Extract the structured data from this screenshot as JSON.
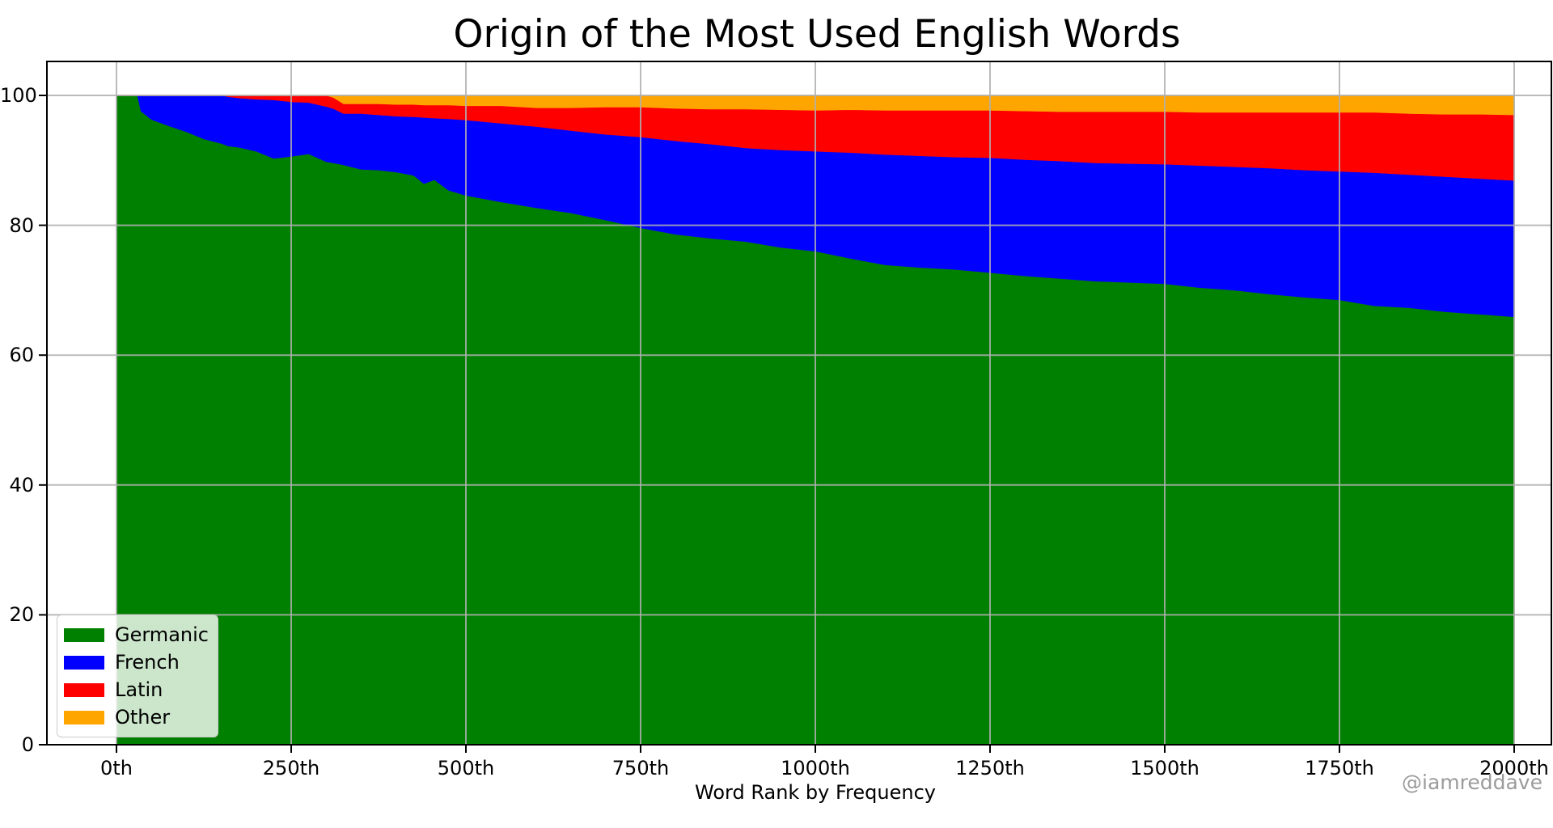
{
  "watermark": "@iamreddave",
  "background_color": "#ffffff",
  "frame_color": "#000000",
  "grid_color": "#b0b0b0",
  "chart_data": {
    "type": "area",
    "stacked": true,
    "title": "Origin of the Most Used English Words",
    "xlabel": "Word Rank by Frequency",
    "ylabel": "",
    "grid": true,
    "xlim": [
      -100,
      2052
    ],
    "ylim": [
      0,
      105
    ],
    "x_tick_values": [
      0,
      250,
      500,
      750,
      1000,
      1250,
      1500,
      1750,
      2000
    ],
    "x_tick_labels": [
      "0th",
      "250th",
      "500th",
      "750th",
      "1000th",
      "1250th",
      "1500th",
      "1750th",
      "2000th"
    ],
    "y_tick_values": [
      0,
      20,
      40,
      60,
      80,
      100
    ],
    "y_tick_labels": [
      "0",
      "20",
      "40",
      "60",
      "80",
      "100"
    ],
    "legend": {
      "position": "lower left",
      "entries": [
        "Germanic",
        "French",
        "Latin",
        "Other"
      ]
    },
    "x": [
      0,
      30,
      35,
      50,
      75,
      100,
      125,
      150,
      160,
      175,
      200,
      225,
      250,
      275,
      300,
      310,
      325,
      350,
      375,
      400,
      425,
      440,
      455,
      475,
      500,
      550,
      600,
      650,
      700,
      750,
      800,
      850,
      900,
      950,
      1000,
      1050,
      1100,
      1150,
      1200,
      1250,
      1300,
      1350,
      1400,
      1450,
      1500,
      1550,
      1600,
      1650,
      1700,
      1750,
      1800,
      1850,
      1900,
      1950,
      2000
    ],
    "series": [
      {
        "name": "Germanic",
        "color": "#008000",
        "values": [
          100,
          100,
          97.6,
          96.3,
          95.3,
          94.4,
          93.3,
          92.6,
          92.2,
          92.0,
          91.4,
          90.3,
          90.6,
          91.0,
          89.8,
          89.6,
          89.3,
          88.6,
          88.5,
          88.2,
          87.7,
          86.4,
          87.0,
          85.4,
          84.6,
          83.6,
          82.7,
          81.9,
          80.8,
          79.6,
          78.6,
          78.0,
          77.5,
          76.6,
          76.0,
          74.9,
          73.9,
          73.5,
          73.2,
          72.7,
          72.2,
          71.8,
          71.4,
          71.2,
          71.0,
          70.4,
          70.0,
          69.4,
          68.9,
          68.5,
          67.6,
          67.3,
          66.7,
          66.3,
          65.9
        ]
      },
      {
        "name": "French",
        "color": "#0000ff",
        "values": [
          0,
          0,
          2.4,
          3.7,
          4.7,
          5.6,
          6.7,
          7.4,
          7.6,
          7.6,
          8.0,
          9.0,
          8.4,
          7.9,
          8.5,
          8.4,
          7.9,
          8.6,
          8.5,
          8.6,
          9.0,
          10.2,
          9.5,
          11.0,
          11.6,
          12.1,
          12.5,
          12.7,
          13.2,
          14.0,
          14.4,
          14.5,
          14.4,
          15.0,
          15.4,
          16.3,
          17.0,
          17.2,
          17.3,
          17.7,
          17.9,
          18.1,
          18.2,
          18.3,
          18.4,
          18.8,
          19.0,
          19.4,
          19.6,
          19.8,
          20.5,
          20.5,
          20.8,
          20.9,
          21.0
        ]
      },
      {
        "name": "Latin",
        "color": "#ff0000",
        "values": [
          0,
          0,
          0,
          0,
          0,
          0,
          0,
          0,
          0.2,
          0.4,
          0.6,
          0.7,
          1.0,
          1.1,
          1.7,
          1.7,
          1.5,
          1.5,
          1.7,
          1.8,
          1.9,
          1.9,
          2.0,
          2.1,
          2.2,
          2.7,
          2.9,
          3.5,
          4.2,
          4.6,
          5.0,
          5.4,
          6.0,
          6.2,
          6.3,
          6.6,
          6.8,
          7.0,
          7.2,
          7.3,
          7.5,
          7.6,
          7.9,
          8.0,
          8.1,
          8.2,
          8.4,
          8.6,
          8.9,
          9.1,
          9.3,
          9.4,
          9.6,
          9.9,
          10.1
        ]
      },
      {
        "name": "Other",
        "color": "#ffa500",
        "values": [
          0,
          0,
          0,
          0,
          0,
          0,
          0,
          0,
          0,
          0,
          0,
          0,
          0,
          0,
          0,
          0.3,
          1.3,
          1.3,
          1.3,
          1.4,
          1.4,
          1.5,
          1.5,
          1.5,
          1.6,
          1.6,
          1.9,
          1.9,
          1.8,
          1.8,
          2.0,
          2.1,
          2.1,
          2.2,
          2.3,
          2.2,
          2.3,
          2.3,
          2.3,
          2.3,
          2.4,
          2.5,
          2.5,
          2.5,
          2.5,
          2.6,
          2.6,
          2.6,
          2.6,
          2.6,
          2.6,
          2.8,
          2.9,
          2.9,
          3.0
        ]
      }
    ]
  }
}
